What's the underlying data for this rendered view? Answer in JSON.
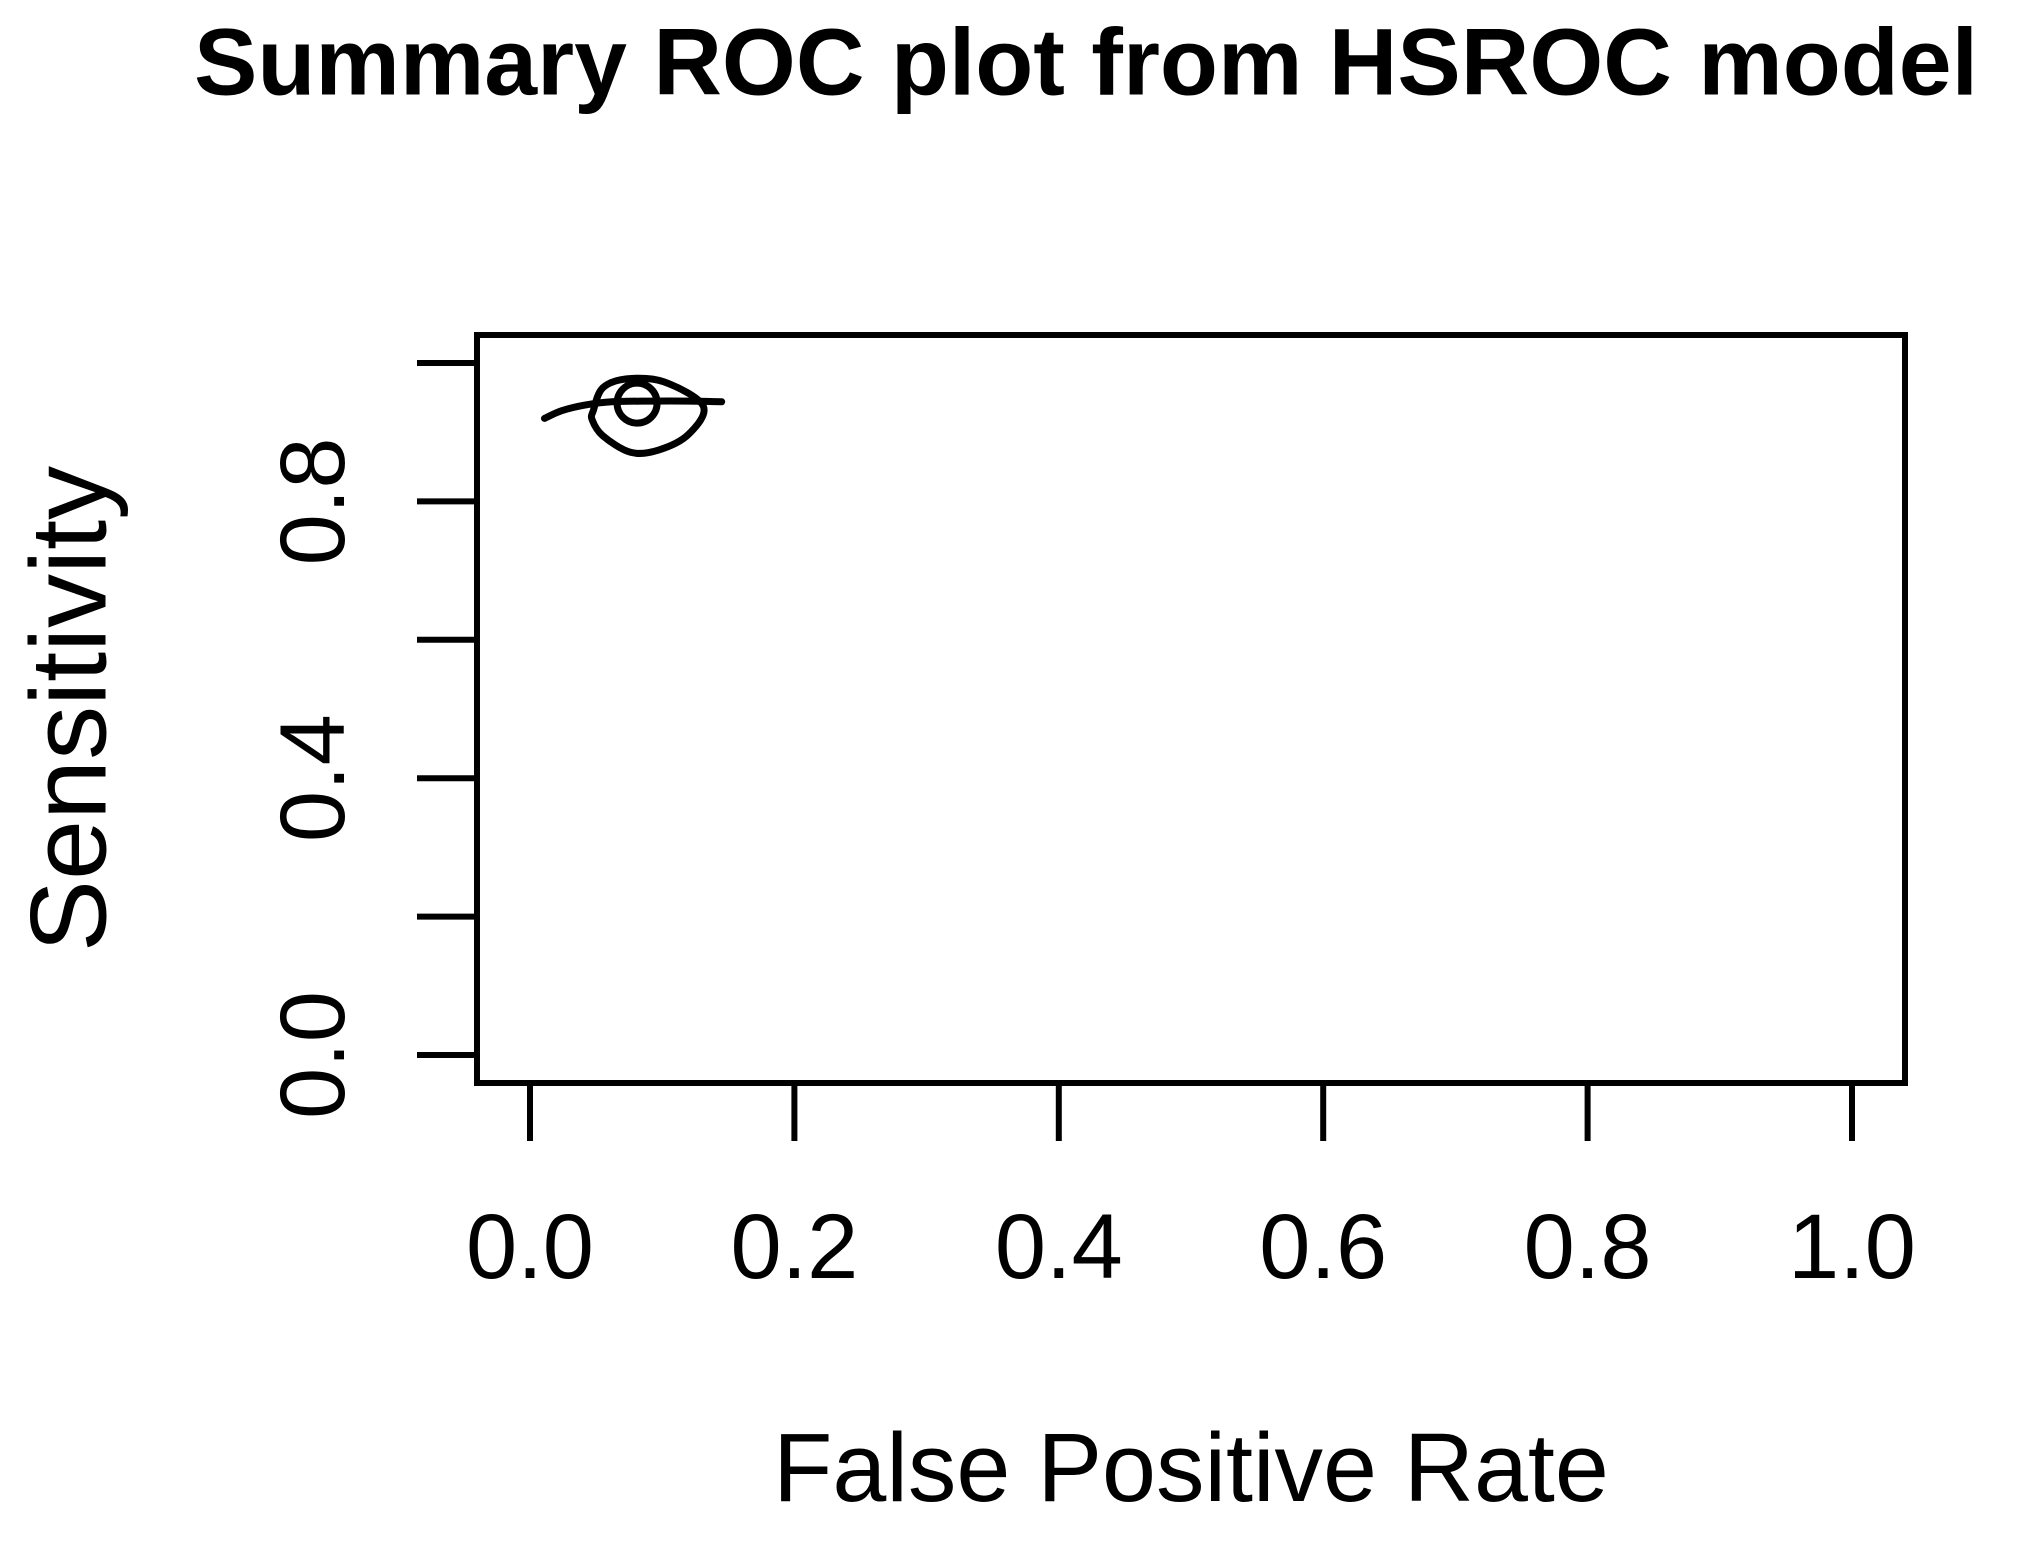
{
  "page": {
    "background": "#ffffff",
    "foreground": "#000000"
  },
  "chart_data": {
    "type": "line",
    "title": "Summary ROC plot from HSROC model",
    "xlabel": "False Positive Rate",
    "ylabel": "Sensitivity",
    "xlim": [
      0.0,
      1.0
    ],
    "ylim": [
      0.0,
      1.0
    ],
    "grid": false,
    "legend_position": "none",
    "x_ticks": [
      0.0,
      0.2,
      0.4,
      0.6,
      0.8,
      1.0
    ],
    "x_tick_labels": [
      "0.0",
      "0.2",
      "0.4",
      "0.6",
      "0.8",
      "1.0"
    ],
    "y_ticks": [
      0.0,
      0.2,
      0.4,
      0.6,
      0.8,
      1.0
    ],
    "y_tick_labels": [
      "0.0",
      "",
      "0.4",
      "",
      "0.8",
      ""
    ],
    "series": [
      {
        "name": "sroc-curve",
        "type": "line",
        "points": [
          [
            0.011,
            0.92
          ],
          [
            0.024,
            0.931
          ],
          [
            0.041,
            0.939
          ],
          [
            0.062,
            0.944
          ],
          [
            0.091,
            0.945
          ],
          [
            0.12,
            0.945
          ],
          [
            0.145,
            0.944
          ]
        ]
      },
      {
        "name": "confidence-region",
        "type": "closed-curve",
        "points": [
          [
            0.048,
            0.932
          ],
          [
            0.055,
            0.964
          ],
          [
            0.073,
            0.977
          ],
          [
            0.101,
            0.973
          ],
          [
            0.131,
            0.938
          ],
          [
            0.12,
            0.897
          ],
          [
            0.097,
            0.874
          ],
          [
            0.076,
            0.871
          ],
          [
            0.055,
            0.895
          ],
          [
            0.047,
            0.918
          ]
        ]
      },
      {
        "name": "summary-point",
        "type": "point",
        "marker": "open-circle",
        "x": 0.081,
        "y": 0.942
      }
    ]
  }
}
